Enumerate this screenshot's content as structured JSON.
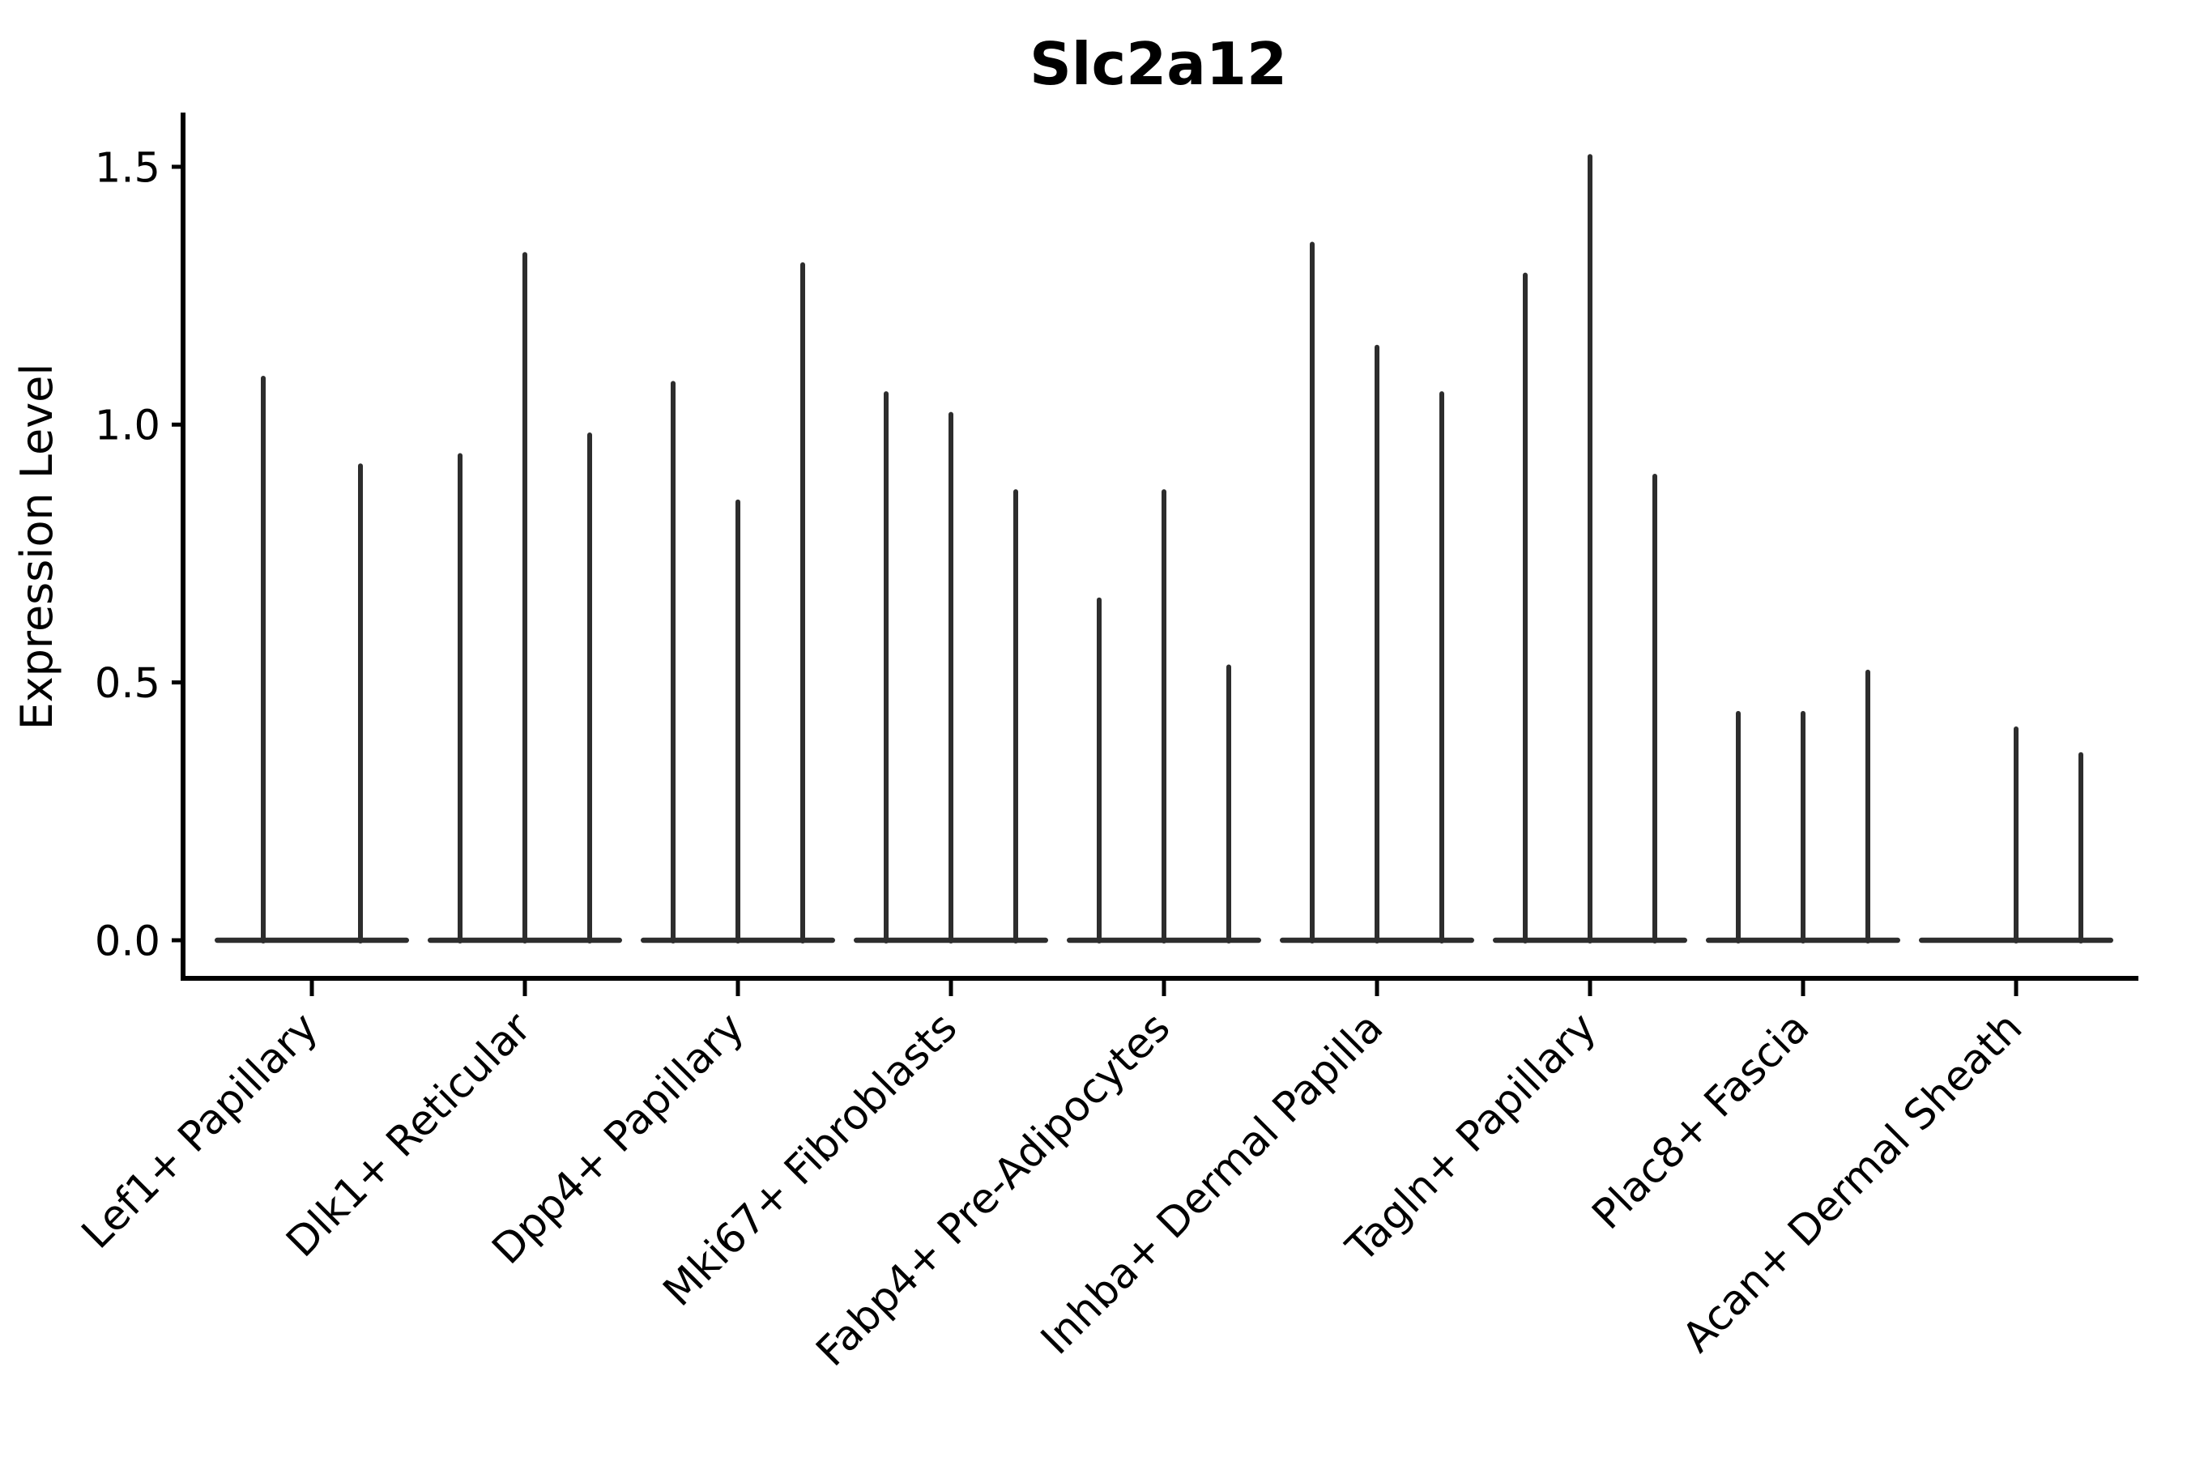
{
  "chart_data": {
    "type": "violin",
    "title": "Slc2a12",
    "ylabel": "Expression Level",
    "xlabel": "",
    "ylim": [
      0,
      1.6
    ],
    "y_ticks": [
      0.0,
      0.5,
      1.0,
      1.5
    ],
    "y_tick_labels": [
      "0.0",
      "0.5",
      "1.0",
      "1.5"
    ],
    "categories": [
      "Lef1+ Papillary",
      "Dlk1+ Reticular",
      "Dpp4+ Papillary",
      "Mki67+ Fibroblasts",
      "Fabp4+ Pre-Adipocytes",
      "Inhba+ Dermal Papilla",
      "Tagln+ Papillary",
      "Plac8+ Fascia",
      "Acan+ Dermal Sheath"
    ],
    "series": [
      {
        "category": "Lef1+ Papillary",
        "violin_maxima": [
          1.09,
          0.92
        ]
      },
      {
        "category": "Dlk1+ Reticular",
        "violin_maxima": [
          0.94,
          1.33,
          0.98
        ]
      },
      {
        "category": "Dpp4+ Papillary",
        "violin_maxima": [
          1.08,
          0.85,
          1.31
        ]
      },
      {
        "category": "Mki67+ Fibroblasts",
        "violin_maxima": [
          1.06,
          1.02,
          0.87
        ]
      },
      {
        "category": "Fabp4+ Pre-Adipocytes",
        "violin_maxima": [
          0.66,
          0.87,
          0.53
        ]
      },
      {
        "category": "Inhba+ Dermal Papilla",
        "violin_maxima": [
          1.35,
          1.15,
          1.06
        ]
      },
      {
        "category": "Tagln+ Papillary",
        "violin_maxima": [
          1.29,
          1.52,
          0.9
        ]
      },
      {
        "category": "Plac8+ Fascia",
        "violin_maxima": [
          0.44,
          0.44,
          0.52
        ]
      },
      {
        "category": "Acan+ Dermal Sheath",
        "violin_maxima": [
          0,
          0.41,
          0.36
        ]
      }
    ],
    "violins_all_start_at": 0,
    "violin_color": "#2d2d2d",
    "axis_color": "#000000",
    "background": "#ffffff",
    "grid": false,
    "legend": "none",
    "x_tick_label_rotation_deg": 45
  }
}
